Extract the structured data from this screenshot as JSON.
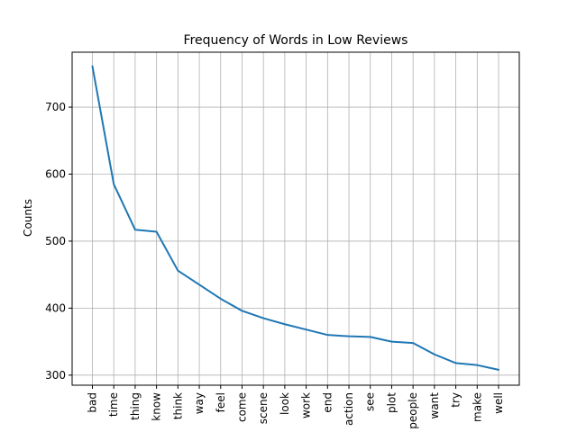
{
  "chart_data": {
    "type": "line",
    "title": "Frequency of Words in Low Reviews",
    "xlabel": "",
    "ylabel": "Counts",
    "categories": [
      "bad",
      "time",
      "thing",
      "know",
      "think",
      "way",
      "feel",
      "come",
      "scene",
      "look",
      "work",
      "end",
      "action",
      "see",
      "plot",
      "people",
      "want",
      "try",
      "make",
      "well"
    ],
    "series": [
      {
        "values": [
          761,
          585,
          517,
          514,
          456,
          435,
          414,
          396,
          385,
          376,
          368,
          360,
          358,
          357,
          350,
          348,
          331,
          318,
          315,
          308
        ]
      }
    ],
    "yticks": [
      300,
      400,
      500,
      600,
      700
    ],
    "ylim": [
      285,
      782
    ],
    "grid": true,
    "line_color": "#1f77b4"
  }
}
